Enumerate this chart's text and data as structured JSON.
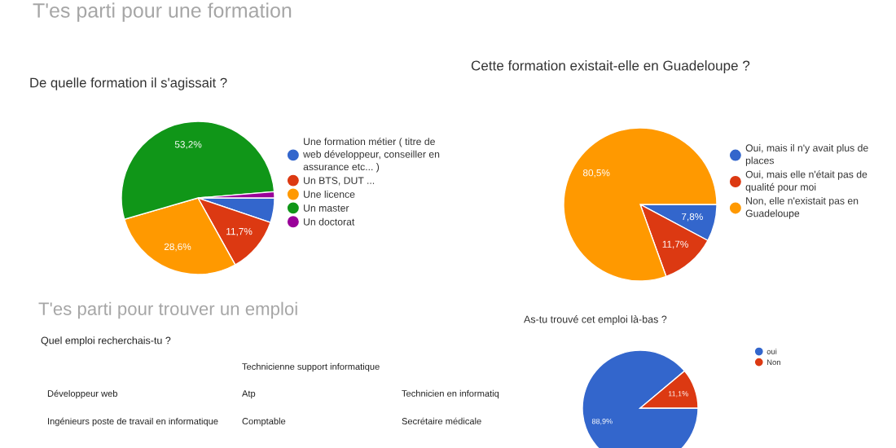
{
  "chart_data": [
    {
      "type": "other",
      "title": "T'es parti pour une formation"
    },
    {
      "type": "pie",
      "title": "De quelle formation il s'agissait ?",
      "categories": [
        "Une formation métier ( titre de web développeur, conseiller en assurance etc... )",
        "Un BTS, DUT ...",
        "Une licence",
        "Un master",
        "Un doctorat"
      ],
      "values": [
        5.2,
        11.7,
        28.6,
        53.2,
        1.3
      ],
      "colors": [
        "#3366cc",
        "#dc3912",
        "#ff9900",
        "#109618",
        "#990099"
      ],
      "value_labels": [
        null,
        "11,7%",
        "28,6%",
        "53,2%",
        null
      ],
      "legend": "right"
    },
    {
      "type": "pie",
      "title": "Cette formation existait-elle en Guadeloupe ?",
      "categories": [
        "Oui, mais il n'y avait plus de places",
        "Oui, mais elle n'était pas de qualité pour moi",
        "Non, elle n'existait pas en Guadeloupe"
      ],
      "values": [
        7.8,
        11.7,
        80.5
      ],
      "colors": [
        "#3366cc",
        "#dc3912",
        "#ff9900"
      ],
      "value_labels": [
        "7,8%",
        "11,7%",
        "80,5%"
      ],
      "legend": "right"
    },
    {
      "type": "other",
      "title": "T'es parti pour trouver un emploi"
    },
    {
      "type": "other",
      "title": "Quel emploi recherchais-tu ?",
      "annotations": [
        "Technicienne support informatique",
        "Développeur web",
        "Atp",
        "Technicien en informatiq",
        "Ingénieurs poste de travail en informatique",
        "Comptable",
        "Secrétaire médicale"
      ]
    },
    {
      "type": "pie",
      "title": "As-tu trouvé cet emploi là-bas ?",
      "categories": [
        "oui",
        "Non"
      ],
      "values": [
        88.9,
        11.1
      ],
      "colors": [
        "#3366cc",
        "#dc3912"
      ],
      "value_labels": [
        "88,9%",
        "11,1%"
      ],
      "legend": "top right"
    }
  ]
}
